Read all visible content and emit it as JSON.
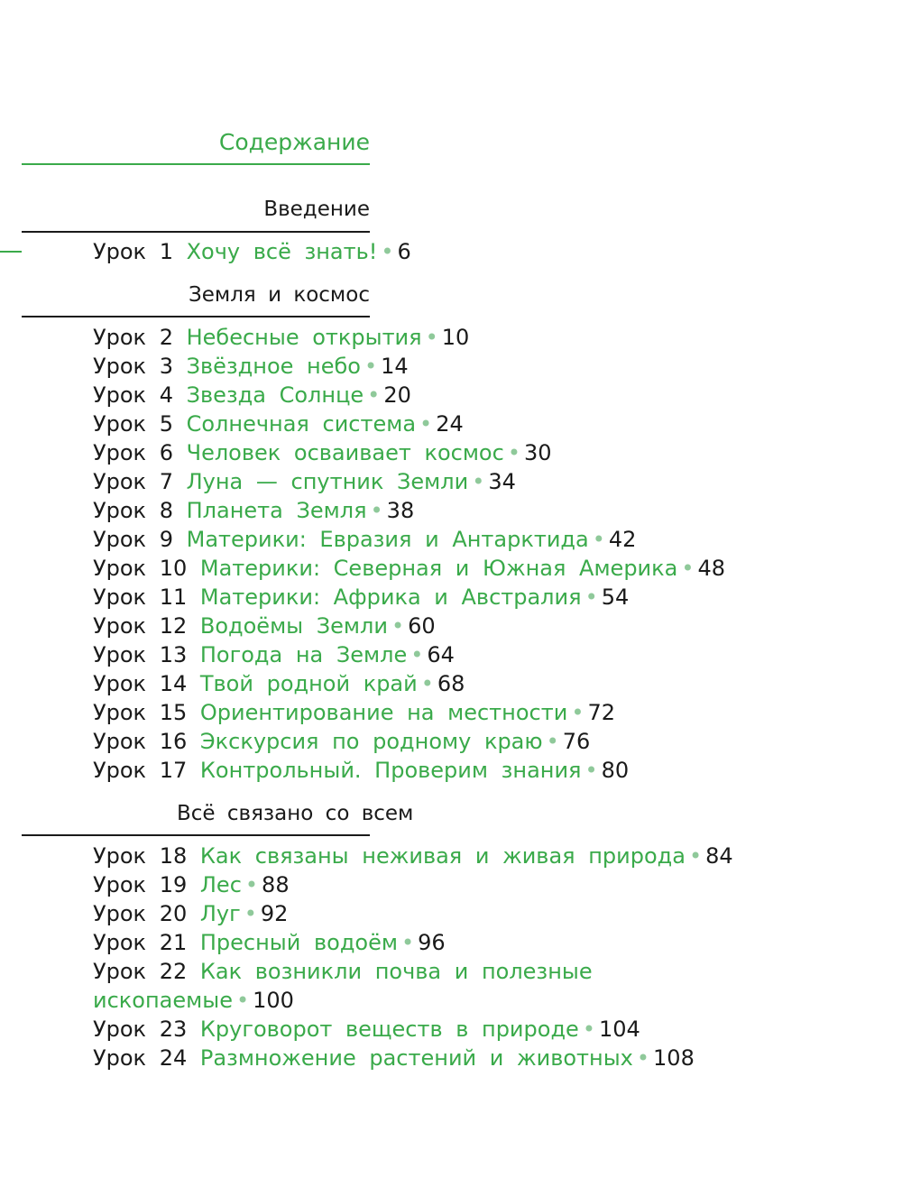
{
  "title": "Содержание",
  "lesson_word": "Урок",
  "bullet": "•",
  "accent_color": "#3aaa4a",
  "sections": [
    {
      "title": "Введение",
      "lessons": [
        {
          "n": "1",
          "title": "Хочу всё знать!",
          "page": "6"
        }
      ]
    },
    {
      "title": "Земля и космос",
      "lessons": [
        {
          "n": "2",
          "title": "Небесные открытия",
          "page": "10"
        },
        {
          "n": "3",
          "title": "Звёздное небо",
          "page": "14"
        },
        {
          "n": "4",
          "title": "Звезда Солнце",
          "page": "20"
        },
        {
          "n": "5",
          "title": "Солнечная система",
          "page": "24"
        },
        {
          "n": "6",
          "title": "Человек осваивает космос",
          "page": "30"
        },
        {
          "n": "7",
          "title": "Луна — спутник Земли",
          "page": "34"
        },
        {
          "n": "8",
          "title": "Планета Земля",
          "page": "38"
        },
        {
          "n": "9",
          "title": "Материки: Евразия и Антарктида",
          "page": "42"
        },
        {
          "n": "10",
          "title": "Материки: Северная и Южная Америка",
          "page": "48"
        },
        {
          "n": "11",
          "title": "Материки: Африка и Австралия",
          "page": "54"
        },
        {
          "n": "12",
          "title": "Водоёмы Земли",
          "page": "60"
        },
        {
          "n": "13",
          "title": "Погода на Земле",
          "page": "64"
        },
        {
          "n": "14",
          "title": "Твой родной край",
          "page": "68"
        },
        {
          "n": "15",
          "title": "Ориентирование на местности",
          "page": "72"
        },
        {
          "n": "16",
          "title": "Экскурсия по родному краю",
          "page": "76"
        },
        {
          "n": "17",
          "title": "Контрольный. Проверим знания",
          "page": "80"
        }
      ]
    },
    {
      "title": "Всё связано со всем",
      "lessons": [
        {
          "n": "18",
          "title": "Как связаны неживая и живая природа",
          "page": "84"
        },
        {
          "n": "19",
          "title": "Лес",
          "page": "88"
        },
        {
          "n": "20",
          "title": "Луг",
          "page": "92"
        },
        {
          "n": "21",
          "title": "Пресный водоём",
          "page": "96"
        },
        {
          "n": "22",
          "title": "Как возникли почва и полезные ископаемые",
          "page": "100"
        },
        {
          "n": "23",
          "title": "Круговорот веществ в природе",
          "page": "104"
        },
        {
          "n": "24",
          "title": "Размножение растений и животных",
          "page": "108"
        }
      ]
    }
  ]
}
